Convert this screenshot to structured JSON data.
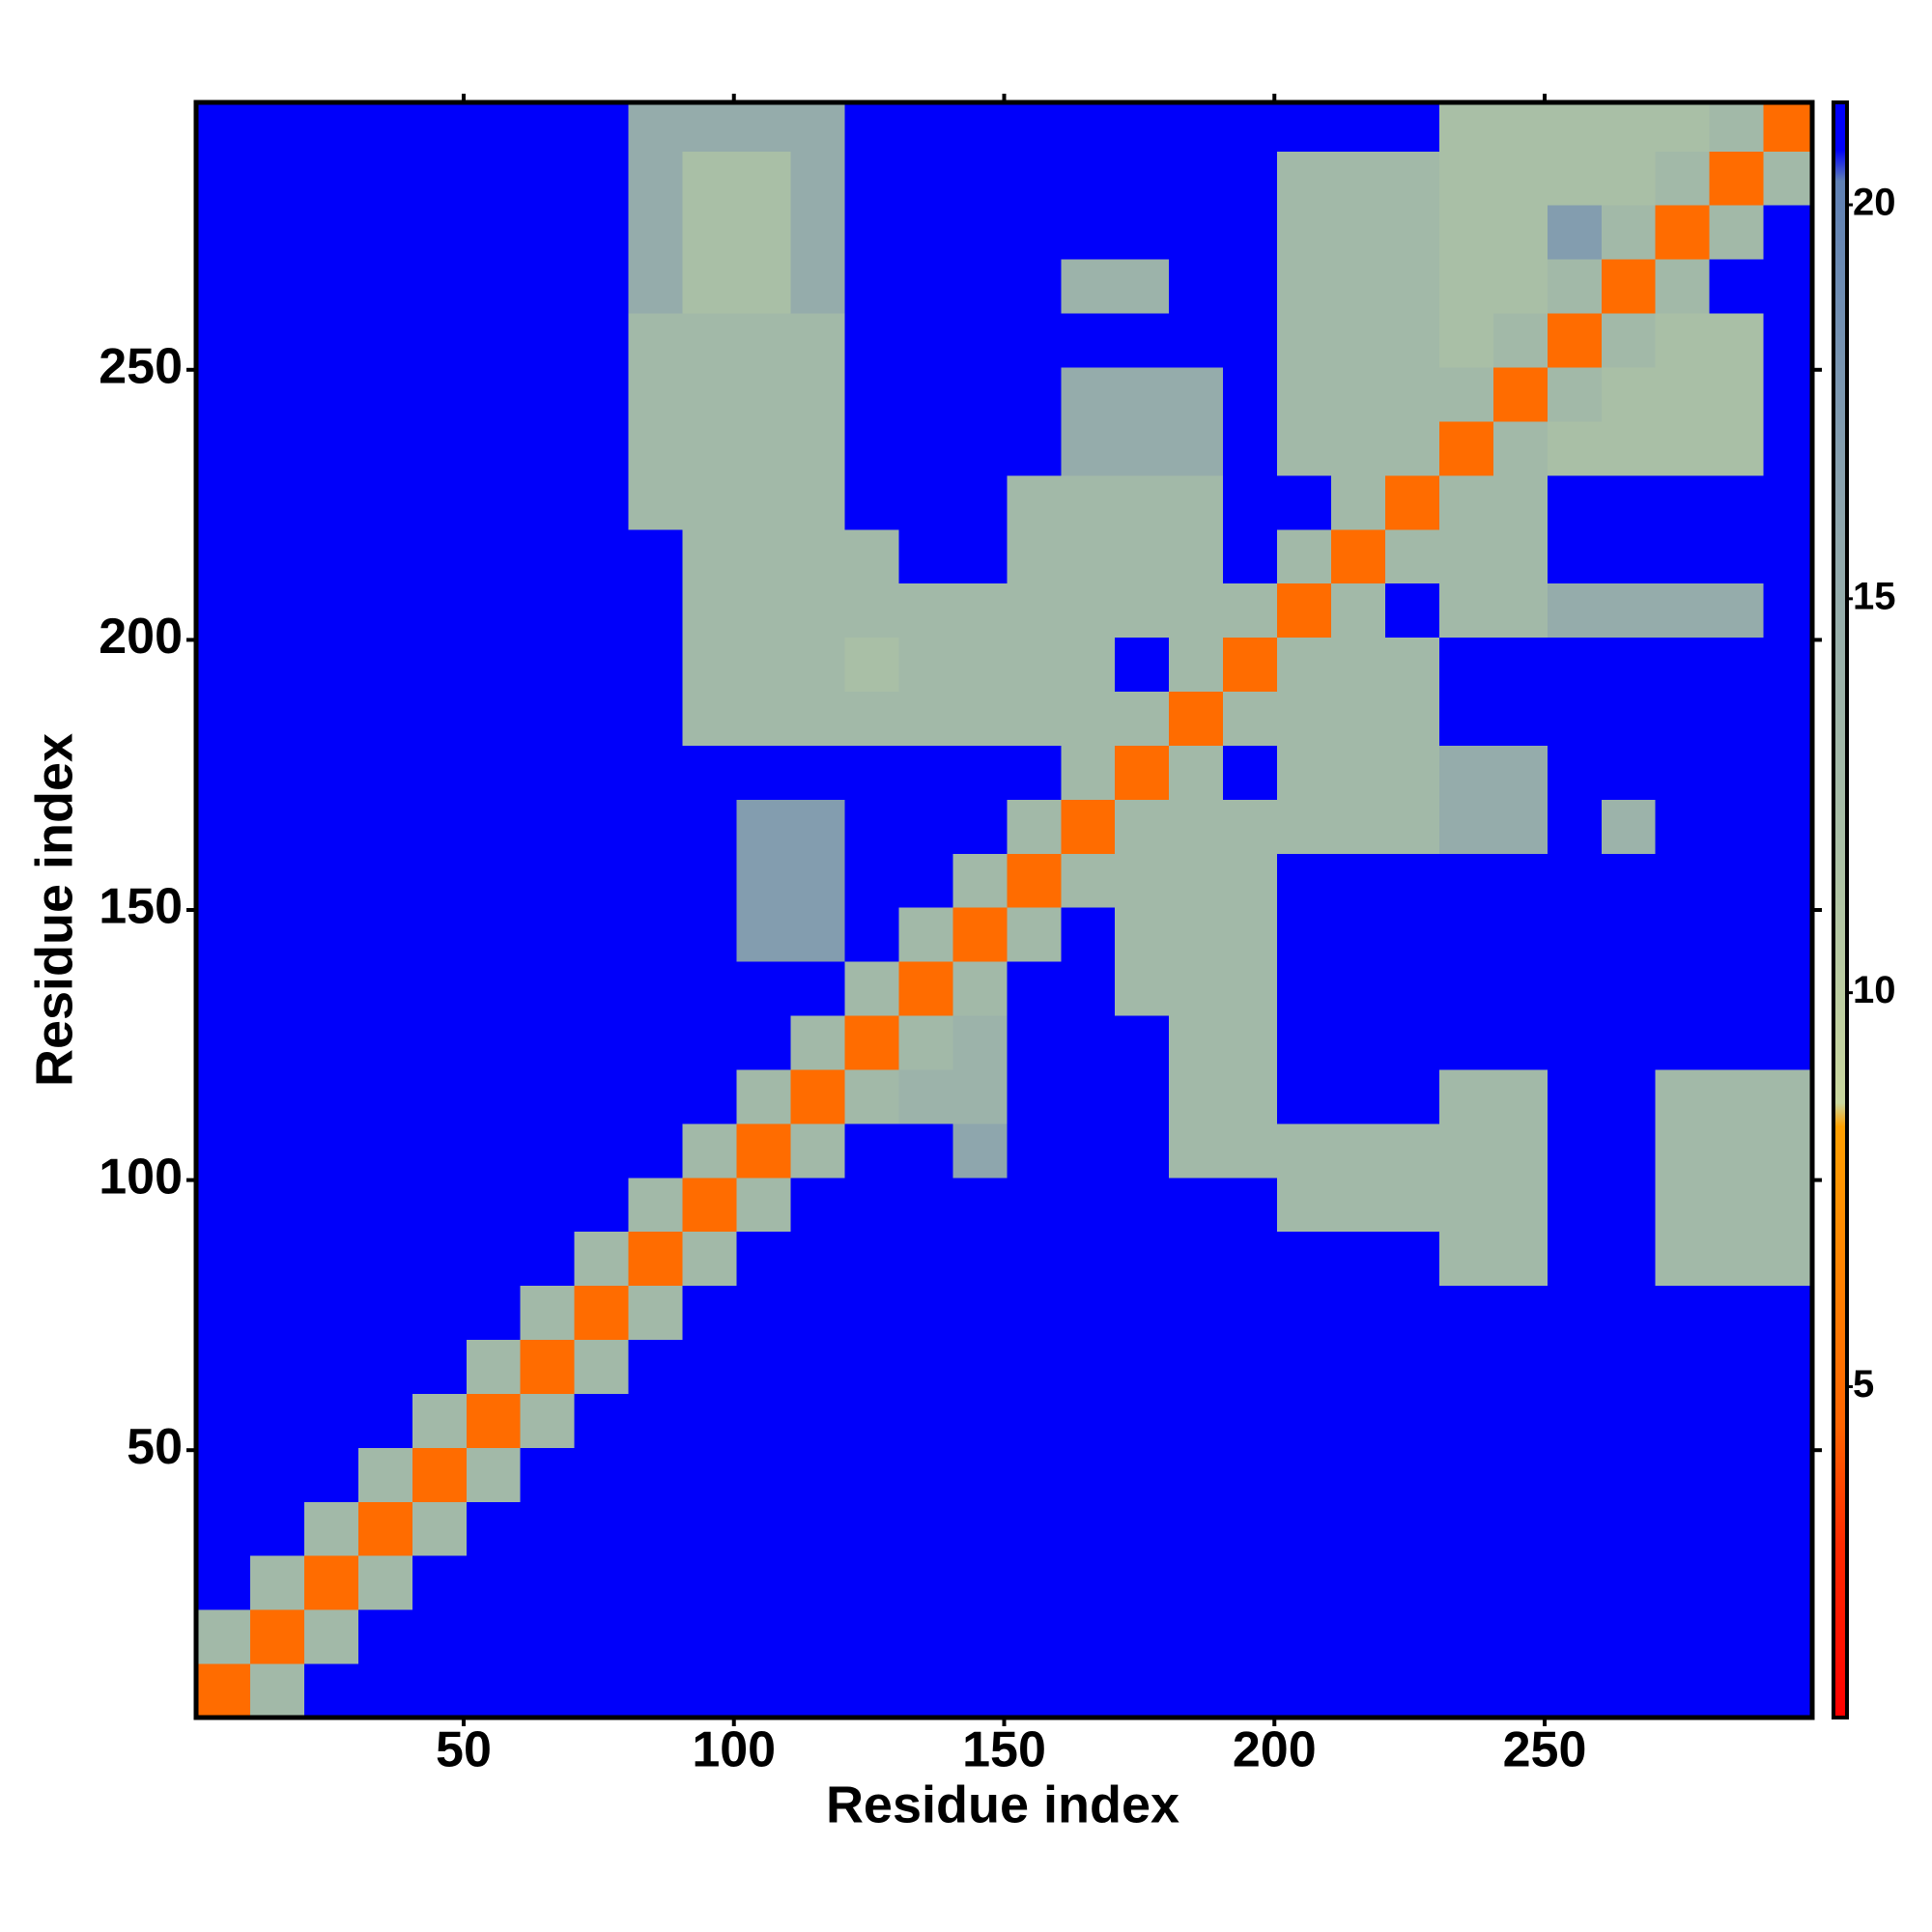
{
  "chart_data": {
    "type": "heatmap",
    "x_label": "Residue index",
    "y_label": "Residue index",
    "xlim": [
      0.5,
      299.5
    ],
    "ylim": [
      0.5,
      299.5
    ],
    "xticks": [
      50,
      100,
      150,
      200,
      250
    ],
    "yticks": [
      50,
      100,
      150,
      200,
      250
    ],
    "clim": [
      0.8,
      21.3
    ],
    "cticks": [
      5,
      10,
      15,
      20
    ],
    "colorscale": [
      [
        0.8,
        "#ff0000"
      ],
      [
        3,
        "#ff2a00"
      ],
      [
        4.5,
        "#ff6400"
      ],
      [
        8.3,
        "#ffa000"
      ],
      [
        8.6,
        "#c9d79e"
      ],
      [
        12,
        "#a9bfa6"
      ],
      [
        16,
        "#8ea6ad"
      ],
      [
        20.3,
        "#5f80b4"
      ],
      [
        20.7,
        "#0000fa"
      ],
      [
        21.3,
        "#0000fa"
      ]
    ],
    "x_edges": [
      0.5,
      10.5,
      20.5,
      30.5,
      40.5,
      50.5,
      60.5,
      70.5,
      80.5,
      90.5,
      100.5,
      110.5,
      120.5,
      130.5,
      140.5,
      150.5,
      160.5,
      170.5,
      180.5,
      190.5,
      200.5,
      210.5,
      220.5,
      230.5,
      240.5,
      250.5,
      260.5,
      270.5,
      280.5,
      290.5,
      299.5
    ],
    "y_edges": [
      0.5,
      10.5,
      20.5,
      30.5,
      40.5,
      50.5,
      60.5,
      70.5,
      80.5,
      90.5,
      100.5,
      110.5,
      120.5,
      130.5,
      140.5,
      150.5,
      160.5,
      170.5,
      180.5,
      190.5,
      200.5,
      210.5,
      220.5,
      230.5,
      240.5,
      250.5,
      260.5,
      270.5,
      280.5,
      290.5,
      299.5
    ],
    "z": [
      [
        5,
        13,
        21,
        21,
        21,
        21,
        21,
        21,
        21,
        21,
        21,
        21,
        21,
        21,
        21,
        21,
        21,
        21,
        21,
        21,
        21,
        21,
        21,
        21,
        21,
        21,
        21,
        21,
        21,
        21
      ],
      [
        13,
        5,
        13,
        21,
        21,
        21,
        21,
        21,
        21,
        21,
        21,
        21,
        21,
        21,
        21,
        21,
        21,
        21,
        21,
        21,
        21,
        21,
        21,
        21,
        21,
        21,
        21,
        21,
        21,
        21
      ],
      [
        21,
        13,
        5,
        13,
        21,
        21,
        21,
        21,
        21,
        21,
        21,
        21,
        21,
        21,
        21,
        21,
        21,
        21,
        21,
        21,
        21,
        21,
        21,
        21,
        21,
        21,
        21,
        21,
        21,
        21
      ],
      [
        21,
        21,
        13,
        5,
        13,
        21,
        21,
        21,
        21,
        21,
        21,
        21,
        21,
        21,
        21,
        21,
        21,
        21,
        21,
        21,
        21,
        21,
        21,
        21,
        21,
        21,
        21,
        21,
        21,
        21
      ],
      [
        21,
        21,
        21,
        13,
        5,
        13,
        21,
        21,
        21,
        21,
        21,
        21,
        21,
        21,
        21,
        21,
        21,
        21,
        21,
        21,
        21,
        21,
        21,
        21,
        21,
        21,
        21,
        21,
        21,
        21
      ],
      [
        21,
        21,
        21,
        21,
        13,
        5,
        13,
        21,
        21,
        21,
        21,
        21,
        21,
        21,
        21,
        21,
        21,
        21,
        21,
        21,
        21,
        21,
        21,
        21,
        21,
        21,
        21,
        21,
        21,
        21
      ],
      [
        21,
        21,
        21,
        21,
        21,
        13,
        5,
        13,
        21,
        21,
        21,
        21,
        21,
        21,
        21,
        21,
        21,
        21,
        21,
        21,
        21,
        21,
        21,
        21,
        21,
        21,
        21,
        21,
        21,
        21
      ],
      [
        21,
        21,
        21,
        21,
        21,
        21,
        13,
        5,
        13,
        21,
        21,
        21,
        21,
        21,
        21,
        21,
        21,
        21,
        21,
        21,
        21,
        21,
        21,
        21,
        21,
        21,
        21,
        21,
        21,
        21
      ],
      [
        21,
        21,
        21,
        21,
        21,
        21,
        21,
        13,
        5,
        13,
        21,
        21,
        21,
        21,
        21,
        21,
        21,
        21,
        21,
        21,
        21,
        21,
        21,
        13,
        13,
        21,
        21,
        13,
        13,
        13
      ],
      [
        21,
        21,
        21,
        21,
        21,
        21,
        21,
        21,
        13,
        5,
        13,
        21,
        21,
        21,
        21,
        21,
        21,
        21,
        21,
        21,
        13,
        13,
        13,
        13,
        13,
        21,
        21,
        13,
        13,
        13
      ],
      [
        21,
        21,
        21,
        21,
        21,
        21,
        21,
        21,
        21,
        13,
        5,
        13,
        21,
        21,
        16,
        21,
        21,
        21,
        13,
        13,
        13,
        13,
        13,
        13,
        13,
        21,
        21,
        13,
        13,
        13
      ],
      [
        21,
        21,
        21,
        21,
        21,
        21,
        21,
        21,
        21,
        21,
        13,
        5,
        13,
        14,
        14,
        21,
        21,
        21,
        13,
        13,
        21,
        21,
        21,
        13,
        13,
        21,
        21,
        13,
        13,
        13
      ],
      [
        21,
        21,
        21,
        21,
        21,
        21,
        21,
        21,
        21,
        21,
        21,
        13,
        5,
        13,
        14,
        21,
        21,
        21,
        13,
        13,
        21,
        21,
        21,
        21,
        21,
        21,
        21,
        21,
        21,
        21
      ],
      [
        21,
        21,
        21,
        21,
        21,
        21,
        21,
        21,
        21,
        21,
        21,
        21,
        13,
        5,
        13,
        21,
        21,
        13,
        13,
        13,
        21,
        21,
        21,
        21,
        21,
        21,
        21,
        21,
        21,
        21
      ],
      [
        21,
        21,
        21,
        21,
        21,
        21,
        21,
        21,
        21,
        21,
        17,
        17,
        21,
        13,
        5,
        13,
        21,
        13,
        13,
        13,
        21,
        21,
        21,
        21,
        21,
        21,
        21,
        21,
        21,
        21
      ],
      [
        21,
        21,
        21,
        21,
        21,
        21,
        21,
        21,
        21,
        21,
        17,
        17,
        21,
        21,
        13,
        5,
        13,
        13,
        13,
        13,
        21,
        21,
        21,
        21,
        21,
        21,
        21,
        21,
        21,
        21
      ],
      [
        21,
        21,
        21,
        21,
        21,
        21,
        21,
        21,
        21,
        21,
        17,
        17,
        21,
        21,
        21,
        13,
        5,
        13,
        13,
        13,
        13,
        13,
        13,
        15,
        15,
        21,
        14,
        21,
        21,
        21
      ],
      [
        21,
        21,
        21,
        21,
        21,
        21,
        21,
        21,
        21,
        21,
        21,
        21,
        21,
        21,
        21,
        21,
        13,
        5,
        13,
        21,
        13,
        13,
        13,
        15,
        15,
        21,
        21,
        21,
        21,
        21
      ],
      [
        21,
        21,
        21,
        21,
        21,
        21,
        21,
        21,
        21,
        13,
        13,
        13,
        13,
        13,
        13,
        13,
        13,
        13,
        5,
        13,
        13,
        13,
        13,
        21,
        21,
        21,
        21,
        21,
        21,
        21
      ],
      [
        21,
        21,
        21,
        21,
        21,
        21,
        21,
        21,
        21,
        13,
        13,
        13,
        12,
        13,
        13,
        13,
        13,
        21,
        13,
        5,
        13,
        13,
        13,
        21,
        21,
        21,
        21,
        21,
        21,
        21
      ],
      [
        21,
        21,
        21,
        21,
        21,
        21,
        21,
        21,
        21,
        13,
        13,
        13,
        13,
        13,
        13,
        13,
        13,
        13,
        13,
        13,
        5,
        13,
        21,
        13,
        13,
        15,
        15,
        15,
        15,
        21
      ],
      [
        21,
        21,
        21,
        21,
        21,
        21,
        21,
        21,
        21,
        13,
        13,
        13,
        13,
        21,
        21,
        13,
        13,
        13,
        13,
        21,
        13,
        5,
        13,
        13,
        13,
        21,
        21,
        21,
        21,
        21
      ],
      [
        21,
        21,
        21,
        21,
        21,
        21,
        21,
        21,
        13,
        13,
        13,
        13,
        21,
        21,
        21,
        13,
        13,
        13,
        13,
        21,
        21,
        13,
        5,
        13,
        13,
        21,
        21,
        21,
        21,
        21
      ],
      [
        21,
        21,
        21,
        21,
        21,
        21,
        21,
        21,
        13,
        13,
        13,
        13,
        21,
        21,
        21,
        21,
        15,
        15,
        15,
        21,
        13,
        13,
        13,
        5,
        13,
        12,
        12,
        12,
        12,
        21
      ],
      [
        21,
        21,
        21,
        21,
        21,
        21,
        21,
        21,
        13,
        13,
        13,
        13,
        21,
        21,
        21,
        21,
        15,
        15,
        15,
        21,
        13,
        13,
        13,
        13,
        5,
        13,
        12,
        12,
        12,
        21
      ],
      [
        21,
        21,
        21,
        21,
        21,
        21,
        21,
        21,
        13,
        13,
        13,
        13,
        21,
        21,
        21,
        21,
        21,
        21,
        21,
        21,
        13,
        13,
        13,
        12,
        13,
        5,
        13,
        12,
        12,
        21
      ],
      [
        21,
        21,
        21,
        21,
        21,
        21,
        21,
        21,
        15,
        12,
        12,
        15,
        21,
        21,
        21,
        21,
        14,
        14,
        21,
        21,
        13,
        13,
        13,
        12,
        12,
        13,
        5,
        13,
        21,
        21
      ],
      [
        21,
        21,
        21,
        21,
        21,
        21,
        21,
        21,
        15,
        12,
        12,
        15,
        21,
        21,
        21,
        21,
        21,
        21,
        21,
        21,
        13,
        13,
        13,
        12,
        12,
        17,
        13,
        5,
        13,
        21
      ],
      [
        21,
        21,
        21,
        21,
        21,
        21,
        21,
        21,
        15,
        12,
        12,
        15,
        21,
        21,
        21,
        21,
        21,
        21,
        21,
        21,
        13,
        13,
        13,
        12,
        12,
        12,
        12,
        13,
        5,
        13
      ],
      [
        21,
        21,
        21,
        21,
        21,
        21,
        21,
        21,
        15,
        15,
        15,
        15,
        21,
        21,
        21,
        21,
        21,
        21,
        21,
        21,
        21,
        21,
        21,
        12,
        12,
        12,
        12,
        12,
        13,
        5
      ]
    ]
  }
}
